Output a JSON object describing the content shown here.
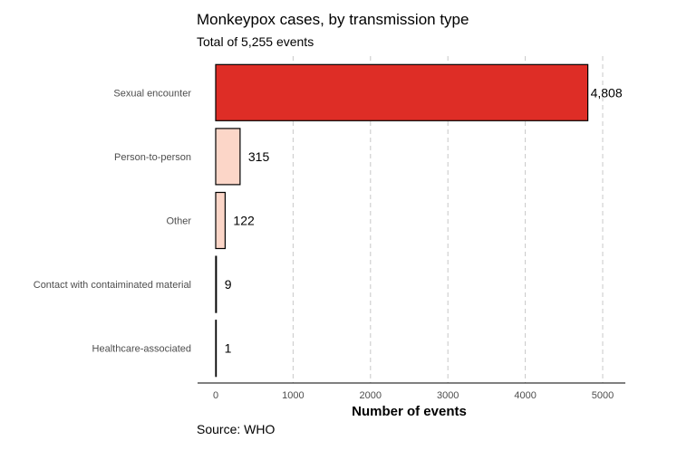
{
  "chart_data": {
    "type": "bar",
    "orientation": "horizontal",
    "title": "Monkeypox cases, by transmission type",
    "subtitle": "Total of 5,255 events",
    "caption": "Source: WHO",
    "xlabel": "Number of events",
    "ylabel": "",
    "xlim": [
      0,
      5000
    ],
    "xticks": [
      0,
      1000,
      2000,
      3000,
      4000,
      5000
    ],
    "grid": "vertical-dashed",
    "legend": "none",
    "categories": [
      "Sexual encounter",
      "Person-to-person",
      "Other",
      "Contact with contaiminated material",
      "Healthcare-associated"
    ],
    "values": [
      4808,
      315,
      122,
      9,
      1
    ],
    "value_labels": [
      "4,808",
      "315",
      "122",
      "9",
      "1"
    ],
    "colors": [
      "#de2d26",
      "#fcd6c8",
      "#fcd6c8",
      "#fcd6c8",
      "#fcd6c8"
    ],
    "bar_outline": "#000000"
  }
}
